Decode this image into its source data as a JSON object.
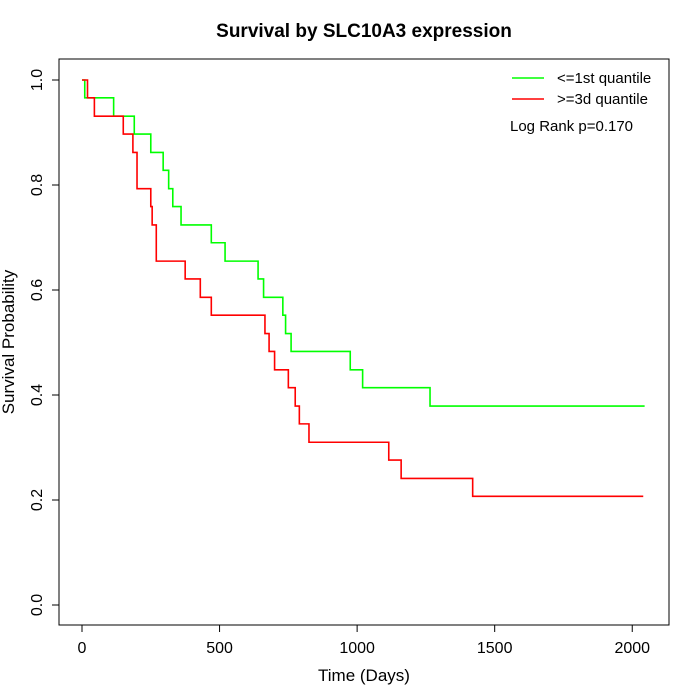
{
  "chart_data": {
    "type": "line",
    "title": "Survival by SLC10A3 expression",
    "xlabel": "Time (Days)",
    "ylabel": "Survival Probability",
    "xlim": [
      0,
      2050
    ],
    "ylim": [
      0,
      1
    ],
    "xticks": [
      0,
      500,
      1000,
      1500,
      2000
    ],
    "xtick_labels": [
      "0",
      "500",
      "1000",
      "1500",
      "2000"
    ],
    "yticks": [
      0,
      0.2,
      0.4,
      0.6,
      0.8,
      1
    ],
    "ytick_labels": [
      "0.0",
      "0.2",
      "0.4",
      "0.6",
      "0.8",
      "1.0"
    ],
    "grid": false,
    "legend_position": "top-right",
    "annotation": "Log Rank p=0.170",
    "series": [
      {
        "name": "<=1st quantile",
        "color": "#00ff00",
        "step": true,
        "points": [
          [
            0,
            1.0
          ],
          [
            10,
            0.966
          ],
          [
            115,
            0.931
          ],
          [
            190,
            0.897
          ],
          [
            250,
            0.862
          ],
          [
            295,
            0.828
          ],
          [
            315,
            0.793
          ],
          [
            330,
            0.759
          ],
          [
            360,
            0.724
          ],
          [
            470,
            0.69
          ],
          [
            520,
            0.655
          ],
          [
            640,
            0.621
          ],
          [
            660,
            0.586
          ],
          [
            730,
            0.552
          ],
          [
            740,
            0.517
          ],
          [
            760,
            0.483
          ],
          [
            975,
            0.448
          ],
          [
            1020,
            0.414
          ],
          [
            1265,
            0.379
          ],
          [
            2045,
            0.379
          ]
        ]
      },
      {
        "name": ">=3d quantile",
        "color": "#ff0000",
        "step": true,
        "points": [
          [
            0,
            1.0
          ],
          [
            20,
            0.966
          ],
          [
            45,
            0.931
          ],
          [
            150,
            0.897
          ],
          [
            185,
            0.862
          ],
          [
            200,
            0.793
          ],
          [
            250,
            0.759
          ],
          [
            255,
            0.724
          ],
          [
            270,
            0.655
          ],
          [
            375,
            0.621
          ],
          [
            430,
            0.586
          ],
          [
            470,
            0.552
          ],
          [
            665,
            0.517
          ],
          [
            680,
            0.483
          ],
          [
            700,
            0.448
          ],
          [
            750,
            0.414
          ],
          [
            775,
            0.379
          ],
          [
            790,
            0.345
          ],
          [
            825,
            0.31
          ],
          [
            1115,
            0.276
          ],
          [
            1160,
            0.241
          ],
          [
            1420,
            0.207
          ],
          [
            2040,
            0.207
          ]
        ]
      }
    ]
  }
}
